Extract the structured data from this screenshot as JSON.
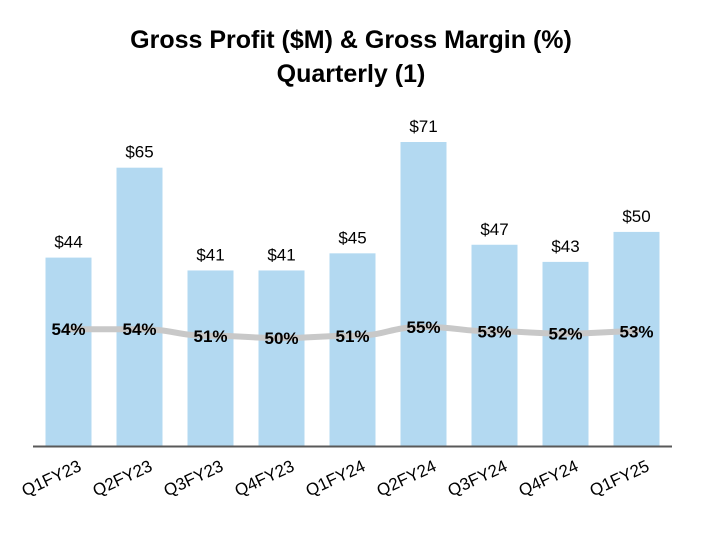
{
  "chart_data": {
    "type": "bar",
    "title": "Gross Profit ($M) & Gross Margin (%)",
    "subtitle": "Quarterly (1)",
    "categories": [
      "Q1FY23",
      "Q2FY23",
      "Q3FY23",
      "Q4FY23",
      "Q1FY24",
      "Q2FY24",
      "Q3FY24",
      "Q4FY24",
      "Q1FY25"
    ],
    "series": [
      {
        "values": [
          44,
          65,
          41,
          41,
          45,
          71,
          47,
          43,
          50
        ],
        "labels": [
          "$44",
          "$65",
          "$41",
          "$41",
          "$45",
          "$71",
          "$47",
          "$43",
          "$50"
        ],
        "type": "bar",
        "color": "#b3d9f1"
      },
      {
        "values": [
          54,
          54,
          51,
          50,
          51,
          55,
          53,
          52,
          53
        ],
        "labels": [
          "54%",
          "54%",
          "51%",
          "50%",
          "51%",
          "55%",
          "53%",
          "52%",
          "53%"
        ],
        "type": "line",
        "color": "#c8c8c8"
      }
    ],
    "ylim": [
      0,
      71
    ],
    "grid": false,
    "legend": "none",
    "axis_color": "#595959"
  }
}
